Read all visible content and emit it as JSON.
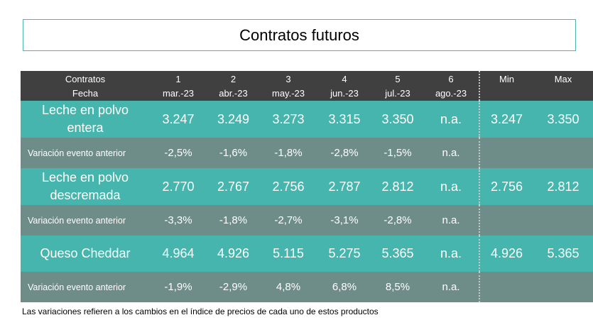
{
  "title": "Contratos futuros",
  "header": {
    "row1_label": "Contratos",
    "row2_label": "Fecha",
    "contracts": [
      "1",
      "2",
      "3",
      "4",
      "5",
      "6"
    ],
    "dates": [
      "mar.-23",
      "abr.-23",
      "may.-23",
      "jun.-23",
      "jul.-23",
      "ago.-23"
    ],
    "min_label": "Min",
    "max_label": "Max"
  },
  "rows": [
    {
      "label": "Leche en polvo entera",
      "values": [
        "3.247",
        "3.249",
        "3.273",
        "3.315",
        "3.350",
        "n.a."
      ],
      "min": "3.247",
      "max": "3.350",
      "variation_label": "Variación evento anterior",
      "variation": [
        "-2,5%",
        "-1,6%",
        "-1,8%",
        "-2,8%",
        "-1,5%",
        "n.a."
      ]
    },
    {
      "label": "Leche en polvo descremada",
      "values": [
        "2.770",
        "2.767",
        "2.756",
        "2.787",
        "2.812",
        "n.a."
      ],
      "min": "2.756",
      "max": "2.812",
      "variation_label": "Variación evento anterior",
      "variation": [
        "-3,3%",
        "-1,8%",
        "-2,7%",
        "-3,1%",
        "-2,8%",
        "n.a."
      ]
    },
    {
      "label": "Queso Cheddar",
      "values": [
        "4.964",
        "4.926",
        "5.115",
        "5.275",
        "5.365",
        "n.a."
      ],
      "min": "4.926",
      "max": "5.365",
      "variation_label": "Variación evento anterior",
      "variation": [
        "-1,9%",
        "-2,9%",
        "4,8%",
        "6,8%",
        "8,5%",
        "n.a."
      ]
    }
  ],
  "footnote": "Las variaciones refieren a los cambios en el índice de precios de cada uno de estos productos",
  "colors": {
    "header_bg": "#404040",
    "product_row_bg": "#45b5ad",
    "variation_row_bg": "#6e8d88",
    "title_border": "#4fb3ad"
  }
}
